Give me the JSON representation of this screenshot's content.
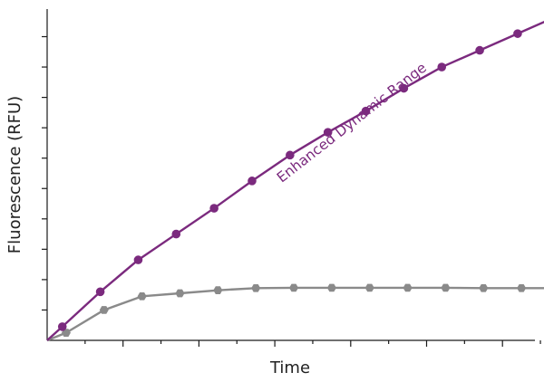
{
  "chart_data": {
    "type": "line",
    "title": "",
    "xlabel": "Time",
    "ylabel": "Fluorescence (RFU)",
    "xlim": [
      0,
      13.5
    ],
    "ylim": [
      0,
      100
    ],
    "x_ticks": [
      1,
      2,
      3,
      4,
      5,
      6,
      7,
      8,
      9,
      10,
      11,
      12,
      13
    ],
    "y_ticks": [
      10,
      20,
      30,
      40,
      50,
      60,
      70,
      80,
      90,
      100
    ],
    "grid": false,
    "legend": "none",
    "annotations": [
      {
        "text": "Enhanced Dynamic Range",
        "series": "purple",
        "x": 8.1,
        "y": 70.5,
        "color": "#7b2a7e"
      }
    ],
    "series": [
      {
        "color": "#7b2a7e",
        "marker": "circle",
        "x": [
          0.4,
          1.4,
          2.4,
          3.4,
          4.4,
          5.4,
          6.4,
          7.4,
          8.4,
          9.4,
          10.4,
          11.4,
          12.4,
          13.4
        ],
        "values": [
          4.5,
          16,
          26.5,
          35,
          43.5,
          52.5,
          61,
          68.5,
          75.5,
          83,
          90,
          95.5,
          101,
          106.5
        ]
      },
      {
        "color": "#8a8a8a",
        "marker": "hexagon",
        "x": [
          0.5,
          1.5,
          2.5,
          3.5,
          4.5,
          5.5,
          6.5,
          7.5,
          8.5,
          9.5,
          10.5,
          11.5,
          12.5,
          13.5
        ],
        "values": [
          2.5,
          10,
          14.5,
          15.5,
          16.5,
          17.2,
          17.3,
          17.3,
          17.3,
          17.3,
          17.3,
          17.2,
          17.2,
          17.2
        ]
      }
    ]
  }
}
